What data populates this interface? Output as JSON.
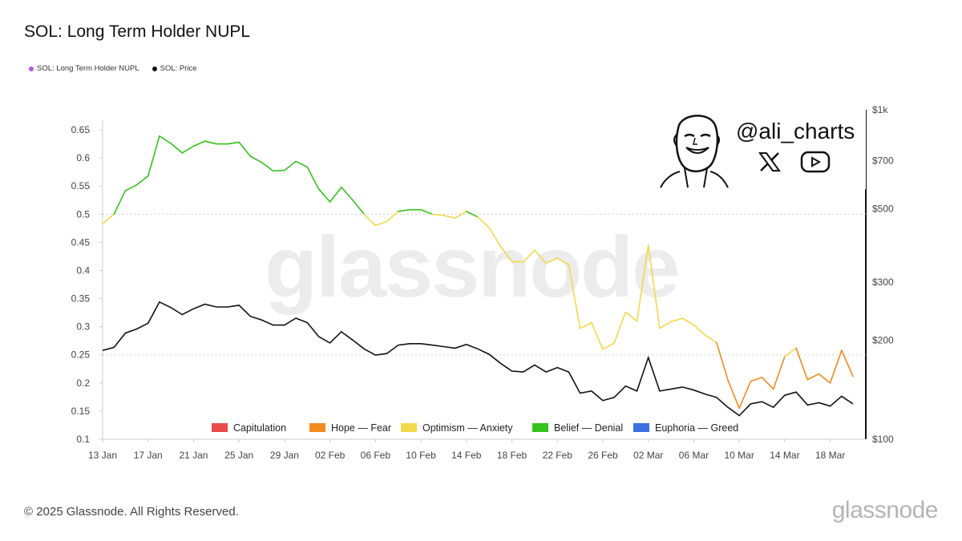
{
  "title": "SOL: Long Term Holder NUPL",
  "legend_top": [
    {
      "label": "SOL: Long Term Holder NUPL",
      "color": "#b659d8"
    },
    {
      "label": "SOL: Price",
      "color": "#111111"
    }
  ],
  "watermark": "glassnode",
  "handle": "@ali_charts",
  "social_icons": [
    "x-logo-icon",
    "youtube-icon"
  ],
  "footer": "© 2025 Glassnode. All Rights Reserved.",
  "brand": "glassnode",
  "colors": {
    "Capitulation": "#e84c4c",
    "Hope — Fear": "#f28a1e",
    "Optimism — Anxiety": "#f2d94b",
    "Belief — Denial": "#35c21c",
    "Euphoria — Greed": "#3d6fe0",
    "price": "#111111"
  },
  "chart_data": {
    "type": "line",
    "title": "SOL: Long Term Holder NUPL",
    "x_ticks": [
      "13 Jan",
      "17 Jan",
      "21 Jan",
      "25 Jan",
      "29 Jan",
      "02 Feb",
      "06 Feb",
      "10 Feb",
      "14 Feb",
      "18 Feb",
      "22 Feb",
      "26 Feb",
      "02 Mar",
      "06 Mar",
      "10 Mar",
      "14 Mar",
      "18 Mar"
    ],
    "y_left": {
      "ticks": [
        "0.65",
        "0.6",
        "0.55",
        "0.5",
        "0.45",
        "0.4",
        "0.35",
        "0.3",
        "0.25",
        "0.2",
        "0.15",
        "0.1"
      ],
      "range": [
        0.1,
        0.66
      ]
    },
    "y_right": {
      "scale": "log",
      "ticks": [
        "$1k",
        "$700",
        "$500",
        "$300",
        "$200",
        "$100"
      ],
      "tick_values": [
        1000,
        700,
        500,
        300,
        200,
        100
      ]
    },
    "legend": [
      "Capitulation",
      "Hope — Fear",
      "Optimism — Anxiety",
      "Belief — Denial",
      "Euphoria — Greed"
    ],
    "series": [
      {
        "name": "SOL: Long Term Holder NUPL",
        "dates": [
          "13 Jan",
          "14 Jan",
          "15 Jan",
          "16 Jan",
          "17 Jan",
          "18 Jan",
          "19 Jan",
          "20 Jan",
          "21 Jan",
          "22 Jan",
          "23 Jan",
          "24 Jan",
          "25 Jan",
          "26 Jan",
          "27 Jan",
          "28 Jan",
          "29 Jan",
          "30 Jan",
          "31 Jan",
          "01 Feb",
          "02 Feb",
          "03 Feb",
          "04 Feb",
          "05 Feb",
          "06 Feb",
          "07 Feb",
          "08 Feb",
          "09 Feb",
          "10 Feb",
          "11 Feb",
          "12 Feb",
          "13 Feb",
          "14 Feb",
          "15 Feb",
          "16 Feb",
          "17 Feb",
          "18 Feb",
          "19 Feb",
          "20 Feb",
          "21 Feb",
          "22 Feb",
          "23 Feb",
          "24 Feb",
          "25 Feb",
          "26 Feb",
          "27 Feb",
          "28 Feb",
          "01 Mar",
          "02 Mar",
          "03 Mar",
          "04 Mar",
          "05 Mar",
          "06 Mar",
          "07 Mar",
          "08 Mar",
          "09 Mar",
          "10 Mar",
          "11 Mar",
          "12 Mar",
          "13 Mar",
          "14 Mar",
          "15 Mar",
          "16 Mar",
          "17 Mar",
          "18 Mar",
          "19 Mar",
          "20 Mar"
        ],
        "values": [
          0.483,
          0.5,
          0.542,
          0.552,
          0.568,
          0.639,
          0.626,
          0.609,
          0.621,
          0.63,
          0.625,
          0.625,
          0.628,
          0.603,
          0.592,
          0.577,
          0.578,
          0.594,
          0.584,
          0.545,
          0.522,
          0.548,
          0.525,
          0.5,
          0.48,
          0.487,
          0.505,
          0.508,
          0.508,
          0.5,
          0.498,
          0.493,
          0.505,
          0.495,
          0.476,
          0.443,
          0.416,
          0.415,
          0.436,
          0.413,
          0.422,
          0.41,
          0.297,
          0.307,
          0.26,
          0.271,
          0.326,
          0.31,
          0.445,
          0.297,
          0.309,
          0.315,
          0.303,
          0.285,
          0.272,
          0.205,
          0.155,
          0.203,
          0.21,
          0.189,
          0.247,
          0.262,
          0.206,
          0.216,
          0.2,
          0.258,
          0.212
        ]
      },
      {
        "name": "SOL: Price",
        "dates": [
          "13 Jan",
          "14 Jan",
          "15 Jan",
          "16 Jan",
          "17 Jan",
          "18 Jan",
          "19 Jan",
          "20 Jan",
          "21 Jan",
          "22 Jan",
          "23 Jan",
          "24 Jan",
          "25 Jan",
          "26 Jan",
          "27 Jan",
          "28 Jan",
          "29 Jan",
          "30 Jan",
          "31 Jan",
          "01 Feb",
          "02 Feb",
          "03 Feb",
          "04 Feb",
          "05 Feb",
          "06 Feb",
          "07 Feb",
          "08 Feb",
          "09 Feb",
          "10 Feb",
          "11 Feb",
          "12 Feb",
          "13 Feb",
          "14 Feb",
          "15 Feb",
          "16 Feb",
          "17 Feb",
          "18 Feb",
          "19 Feb",
          "20 Feb",
          "21 Feb",
          "22 Feb",
          "23 Feb",
          "24 Feb",
          "25 Feb",
          "26 Feb",
          "27 Feb",
          "28 Feb",
          "01 Mar",
          "02 Mar",
          "03 Mar",
          "04 Mar",
          "05 Mar",
          "06 Mar",
          "07 Mar",
          "08 Mar",
          "09 Mar",
          "10 Mar",
          "11 Mar",
          "12 Mar",
          "13 Mar",
          "14 Mar",
          "15 Mar",
          "16 Mar",
          "17 Mar",
          "18 Mar",
          "19 Mar",
          "20 Mar"
        ],
        "values": [
          186,
          190,
          210,
          216,
          225,
          261,
          251,
          239,
          249,
          257,
          252,
          252,
          255,
          236,
          230,
          222,
          222,
          233,
          226,
          205,
          196,
          212,
          200,
          188,
          180,
          182,
          193,
          195,
          195,
          193,
          191,
          189,
          194,
          188,
          181,
          170,
          161,
          160,
          168,
          160,
          165,
          160,
          138,
          140,
          131,
          134,
          145,
          140,
          177,
          140,
          142,
          144,
          141,
          137,
          134,
          125,
          118,
          128,
          130,
          125,
          136,
          139,
          127,
          129,
          126,
          135,
          128
        ]
      }
    ]
  }
}
